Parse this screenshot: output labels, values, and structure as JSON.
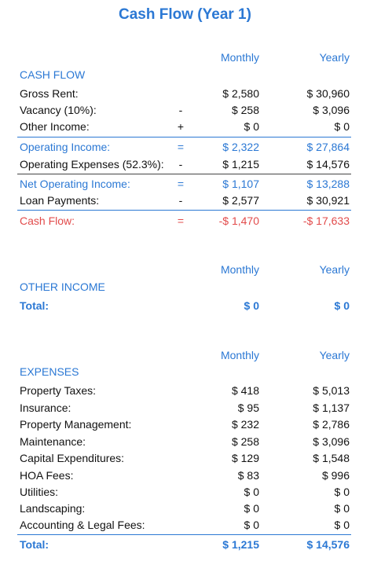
{
  "title": "Cash Flow (Year 1)",
  "colors": {
    "accent": "#2b78d4",
    "negative": "#e24b4b"
  },
  "cash_flow": {
    "monthly_header": "Monthly",
    "yearly_header": "Yearly",
    "section_label": "CASH FLOW",
    "rows": [
      {
        "label": "Gross Rent:",
        "op": "",
        "monthly": "$ 2,580",
        "yearly": "$ 30,960"
      },
      {
        "label": "Vacancy (10%):",
        "op": "-",
        "monthly": "$ 258",
        "yearly": "$ 3,096"
      },
      {
        "label": "Other Income:",
        "op": "+",
        "monthly": "$ 0",
        "yearly": "$ 0"
      },
      {
        "label": "Operating Income:",
        "op": "=",
        "monthly": "$ 2,322",
        "yearly": "$ 27,864"
      },
      {
        "label": "Operating Expenses (52.3%):",
        "op": "-",
        "monthly": "$ 1,215",
        "yearly": "$ 14,576"
      },
      {
        "label": "Net Operating Income:",
        "op": "=",
        "monthly": "$ 1,107",
        "yearly": "$ 13,288"
      },
      {
        "label": "Loan Payments:",
        "op": "-",
        "monthly": "$ 2,577",
        "yearly": "$ 30,921"
      },
      {
        "label": "Cash Flow:",
        "op": "=",
        "monthly": "-$ 1,470",
        "yearly": "-$ 17,633"
      }
    ]
  },
  "other_income": {
    "monthly_header": "Monthly",
    "yearly_header": "Yearly",
    "section_label": "OTHER INCOME",
    "total": {
      "label": "Total:",
      "monthly": "$ 0",
      "yearly": "$ 0"
    }
  },
  "expenses": {
    "monthly_header": "Monthly",
    "yearly_header": "Yearly",
    "section_label": "EXPENSES",
    "rows": [
      {
        "label": "Property Taxes:",
        "monthly": "$ 418",
        "yearly": "$ 5,013"
      },
      {
        "label": "Insurance:",
        "monthly": "$ 95",
        "yearly": "$ 1,137"
      },
      {
        "label": "Property Management:",
        "monthly": "$ 232",
        "yearly": "$ 2,786"
      },
      {
        "label": "Maintenance:",
        "monthly": "$ 258",
        "yearly": "$ 3,096"
      },
      {
        "label": "Capital Expenditures:",
        "monthly": "$ 129",
        "yearly": "$ 1,548"
      },
      {
        "label": "HOA Fees:",
        "monthly": "$ 83",
        "yearly": "$ 996"
      },
      {
        "label": "Utilities:",
        "monthly": "$ 0",
        "yearly": "$ 0"
      },
      {
        "label": "Landscaping:",
        "monthly": "$ 0",
        "yearly": "$ 0"
      },
      {
        "label": "Accounting & Legal Fees:",
        "monthly": "$ 0",
        "yearly": "$ 0"
      }
    ],
    "total": {
      "label": "Total:",
      "monthly": "$ 1,215",
      "yearly": "$ 14,576"
    }
  }
}
